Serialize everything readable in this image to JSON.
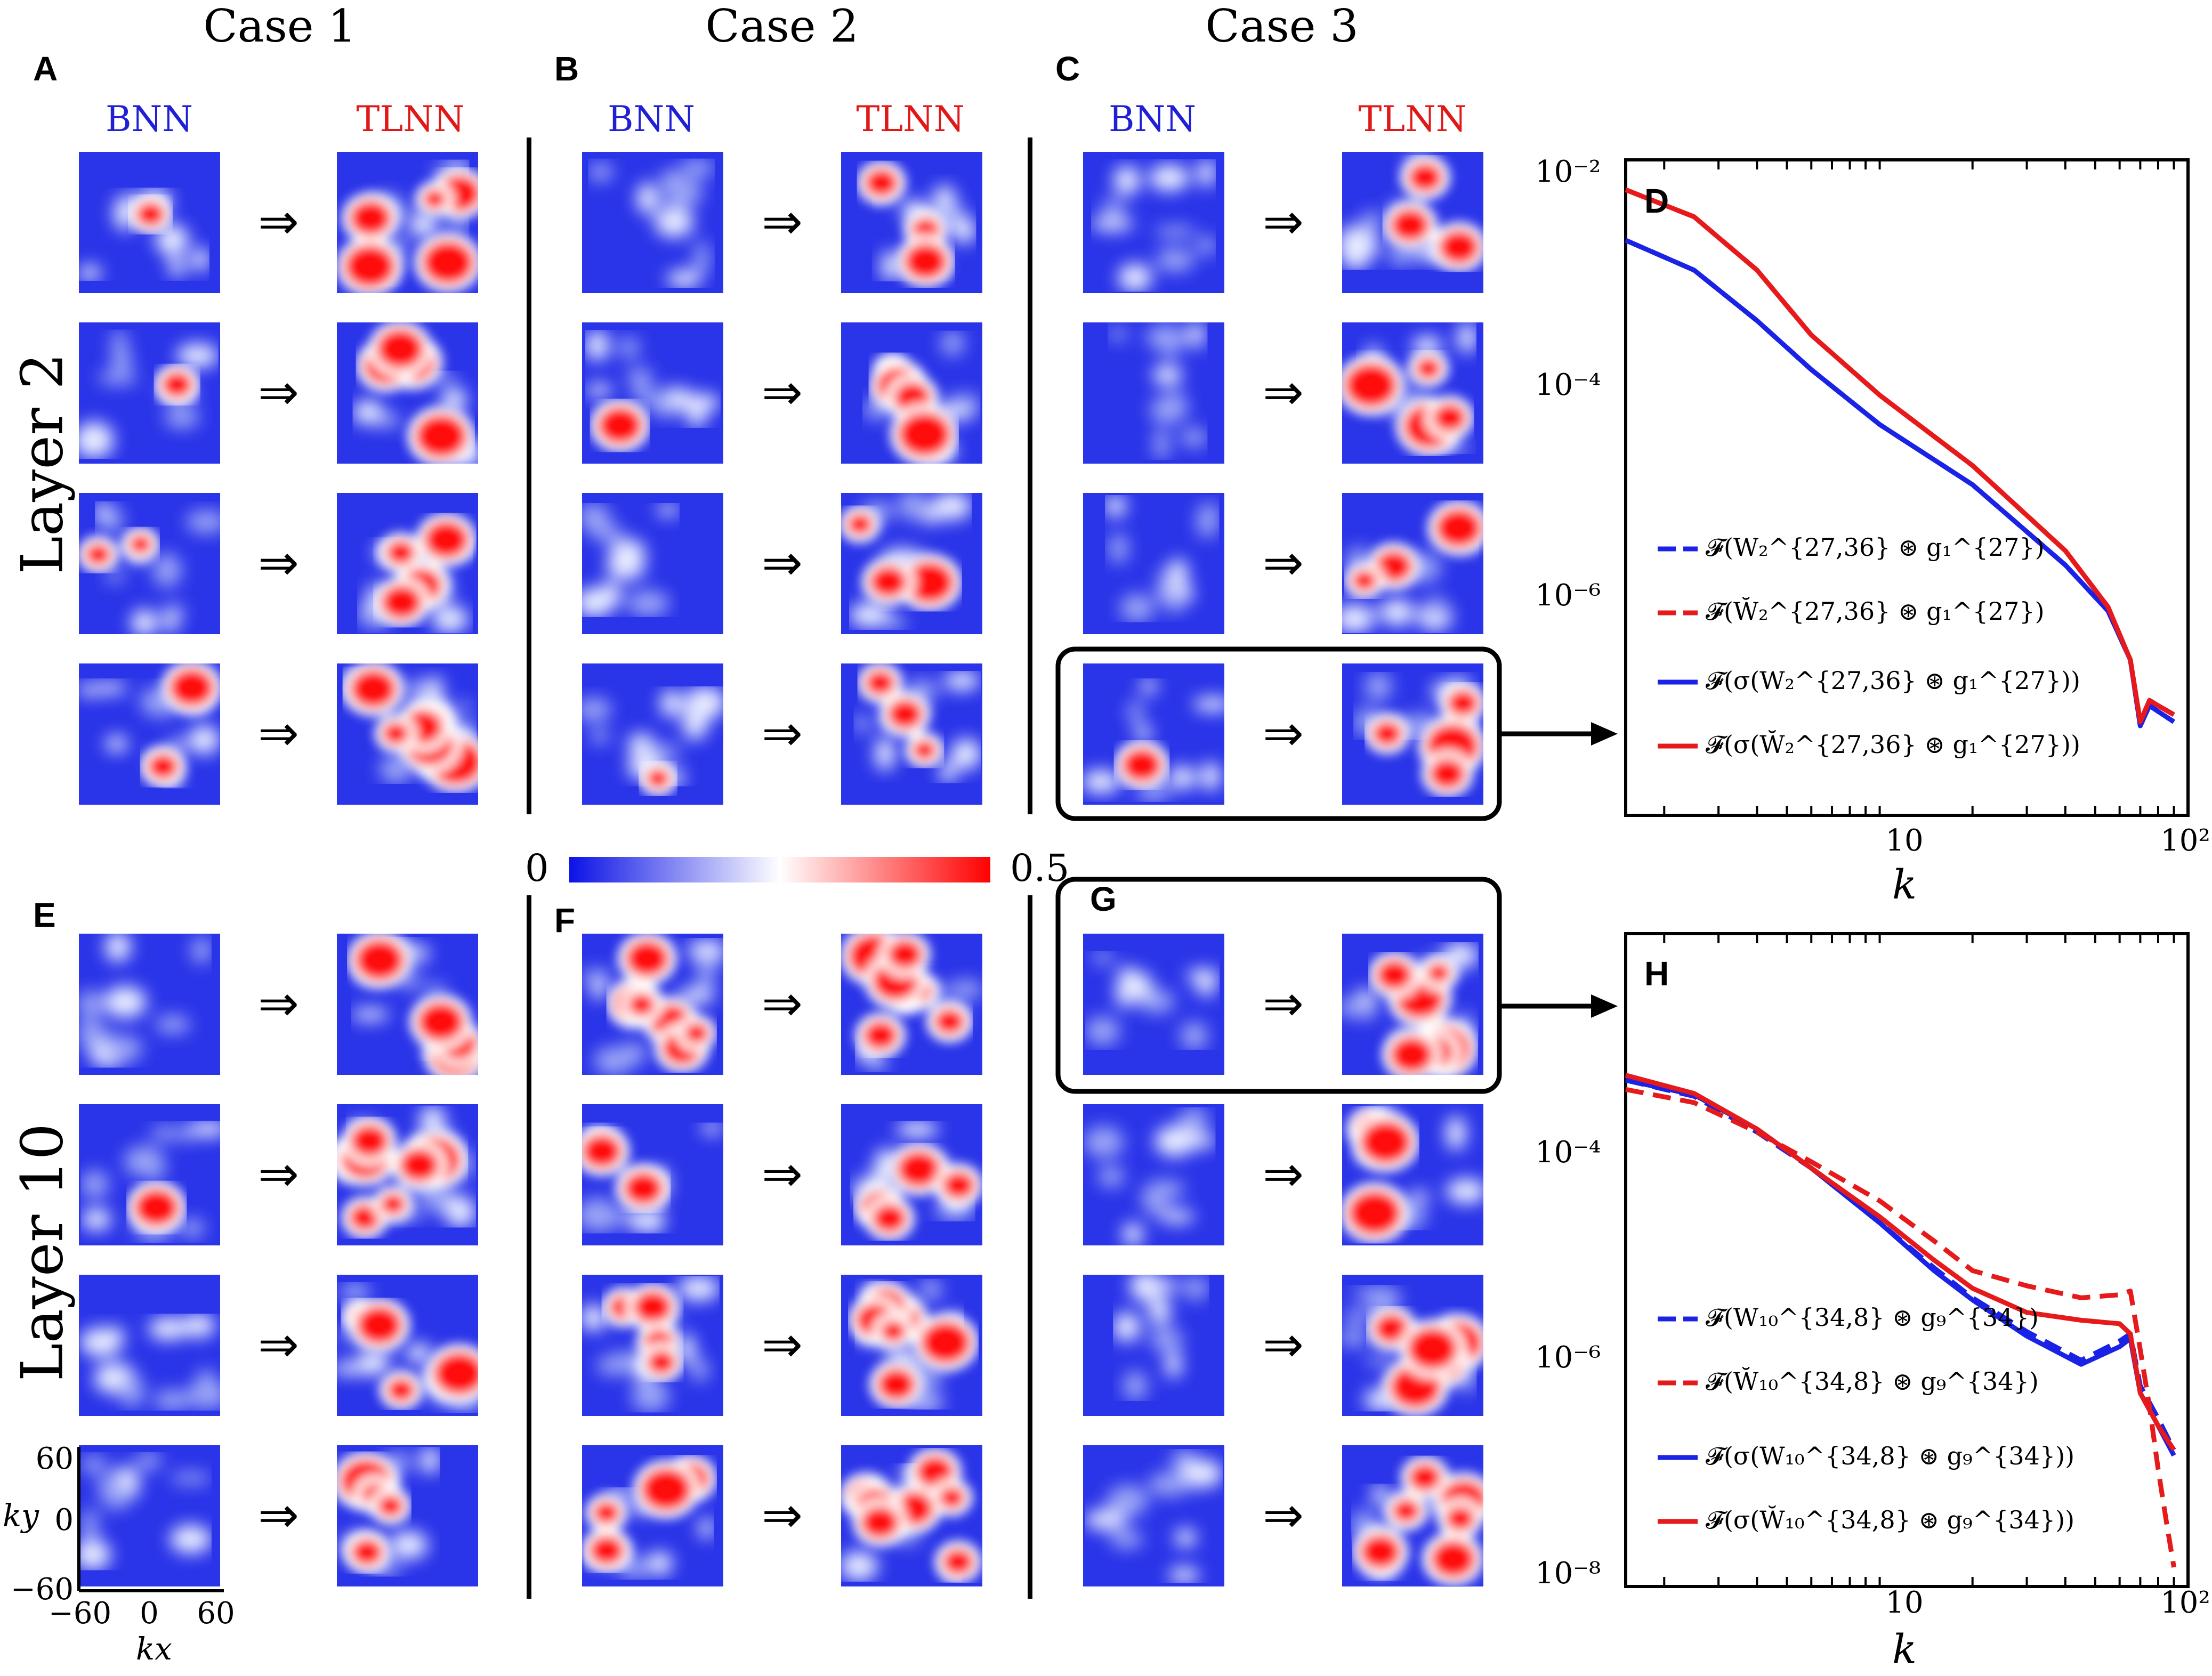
{
  "case_headers": [
    "Case 1",
    "Case 2",
    "Case 3"
  ],
  "panel_labels": {
    "A": "A",
    "B": "B",
    "C": "C",
    "D": "D",
    "E": "E",
    "F": "F",
    "G": "G",
    "H": "H"
  },
  "net_labels": {
    "bnn": "BNN",
    "tlnn": "TLNN"
  },
  "layer_labels": {
    "top": "Layer 2",
    "bottom": "Layer 10"
  },
  "arrow_glyph": "⇒",
  "colorbar": {
    "min_label": "0",
    "max_label": "0.5",
    "colors": [
      "#0b12e6",
      "#ffffff",
      "#ff0000"
    ]
  },
  "inset_axes": {
    "ylabel": "ky",
    "xlabel": "kx",
    "yticks": [
      "60",
      "0",
      "−60"
    ],
    "xticks": [
      "−60",
      "0",
      "60"
    ]
  },
  "colors": {
    "blue": "#1a22e6",
    "red": "#e61a1a"
  },
  "chart_data": [
    {
      "type": "line",
      "panel": "D",
      "xlabel": "k",
      "x_scale": "log",
      "y_scale": "log",
      "xlim": [
        1.5,
        100
      ],
      "ylim": [
        1e-08,
        0.01
      ],
      "xticks": [
        "10",
        "10²"
      ],
      "yticks": [
        "10⁻²",
        "10⁻⁴",
        "10⁻⁶"
      ],
      "legend_location": "center-left",
      "series": [
        {
          "name": "𝓕(W₂^{27,36} ⊛ g₁^{27})",
          "style": "dashed",
          "color": "#1a22e6",
          "x": [
            1.5,
            2.5,
            4,
            6,
            10,
            20,
            40,
            55,
            65,
            70,
            75,
            80,
            90
          ],
          "y": [
            0.002,
            0.0011,
            0.0004,
            0.00015,
            5e-05,
            1.5e-05,
            3e-06,
            1.2e-06,
            4.5e-07,
            1.2e-07,
            1.8e-07,
            1.6e-07,
            1.3e-07
          ]
        },
        {
          "name": "𝓕(W̆₂^{27,36} ⊛ g₁^{27})",
          "style": "dashed",
          "color": "#e61a1a",
          "x": [
            1.5,
            2.5,
            4,
            6,
            10,
            20,
            40,
            55,
            65,
            70,
            75,
            80,
            90
          ],
          "y": [
            0.0055,
            0.0032,
            0.0011,
            0.0003,
            9e-05,
            2.2e-05,
            4e-06,
            1.3e-06,
            4.5e-07,
            1.3e-07,
            2e-07,
            1.8e-07,
            1.5e-07
          ]
        },
        {
          "name": "𝓕(σ(W₂^{27,36} ⊛ g₁^{27}))",
          "style": "solid",
          "color": "#1a22e6",
          "x": [
            1.5,
            2.5,
            4,
            6,
            10,
            20,
            40,
            55,
            65,
            70,
            75,
            80,
            90
          ],
          "y": [
            0.002,
            0.0011,
            0.0004,
            0.00015,
            5e-05,
            1.5e-05,
            3e-06,
            1.2e-06,
            4.5e-07,
            1.2e-07,
            1.8e-07,
            1.6e-07,
            1.3e-07
          ]
        },
        {
          "name": "𝓕(σ(W̆₂^{27,36} ⊛ g₁^{27}))",
          "style": "solid",
          "color": "#e61a1a",
          "x": [
            1.5,
            2.5,
            4,
            6,
            10,
            20,
            40,
            55,
            65,
            70,
            75,
            80,
            90
          ],
          "y": [
            0.0055,
            0.0032,
            0.0011,
            0.0003,
            9e-05,
            2.2e-05,
            4e-06,
            1.3e-06,
            4.5e-07,
            1.3e-07,
            2e-07,
            1.8e-07,
            1.5e-07
          ]
        }
      ]
    },
    {
      "type": "line",
      "panel": "H",
      "xlabel": "k",
      "x_scale": "log",
      "y_scale": "log",
      "xlim": [
        1.5,
        100
      ],
      "ylim": [
        1e-08,
        0.01
      ],
      "xticks": [
        "10",
        "10²"
      ],
      "yticks": [
        "10⁻⁴",
        "10⁻⁶",
        "10⁻⁸"
      ],
      "legend_location": "center-left",
      "series": [
        {
          "name": "𝓕(W₁₀^{34,8} ⊛ g₉^{34})",
          "style": "dashed",
          "color": "#1a22e6",
          "x": [
            1.5,
            2.5,
            4,
            6,
            10,
            15,
            20,
            30,
            45,
            60,
            65,
            70,
            80,
            90
          ],
          "y": [
            0.00045,
            0.00032,
            0.00015,
            7e-05,
            2.2e-05,
            8.5e-06,
            4.5e-06,
            2.2e-06,
            1.2e-06,
            1.8e-06,
            2.1e-06,
            7e-07,
            3.5e-07,
            1.8e-07
          ]
        },
        {
          "name": "𝓕(W̆₁₀^{34,8} ⊛ g₉^{34})",
          "style": "dashed",
          "color": "#e61a1a",
          "x": [
            1.5,
            2.5,
            4,
            6,
            10,
            15,
            20,
            30,
            45,
            60,
            65,
            70,
            75,
            80,
            85,
            90
          ],
          "y": [
            0.00037,
            0.00028,
            0.00015,
            8e-05,
            3.5e-05,
            1.5e-05,
            8e-06,
            5.8e-06,
            4.5e-06,
            4.8e-06,
            5.2e-06,
            1.5e-06,
            4.5e-07,
            1.2e-07,
            4e-08,
            1.5e-08
          ]
        },
        {
          "name": "𝓕(σ(W₁₀^{34,8} ⊛ g₉^{34}))",
          "style": "solid",
          "color": "#1a22e6",
          "x": [
            1.5,
            2.5,
            4,
            6,
            10,
            15,
            20,
            30,
            45,
            60,
            65,
            70,
            80,
            90
          ],
          "y": [
            0.00045,
            0.00033,
            0.00016,
            7e-05,
            2.2e-05,
            8e-06,
            4.3e-06,
            2e-06,
            1.1e-06,
            1.6e-06,
            1.9e-06,
            6e-07,
            3e-07,
            1.6e-07
          ]
        },
        {
          "name": "𝓕(σ(W̆₁₀^{34,8} ⊛ g₉^{34}))",
          "style": "solid",
          "color": "#e61a1a",
          "x": [
            1.5,
            2.5,
            4,
            6,
            10,
            15,
            20,
            30,
            45,
            60,
            65,
            70,
            80,
            90
          ],
          "y": [
            0.0005,
            0.00034,
            0.00016,
            7e-05,
            2.5e-05,
            1e-05,
            5.5e-06,
            3.3e-06,
            2.8e-06,
            2.6e-06,
            2.1e-06,
            6e-07,
            3e-07,
            1.8e-07
          ]
        }
      ]
    }
  ]
}
